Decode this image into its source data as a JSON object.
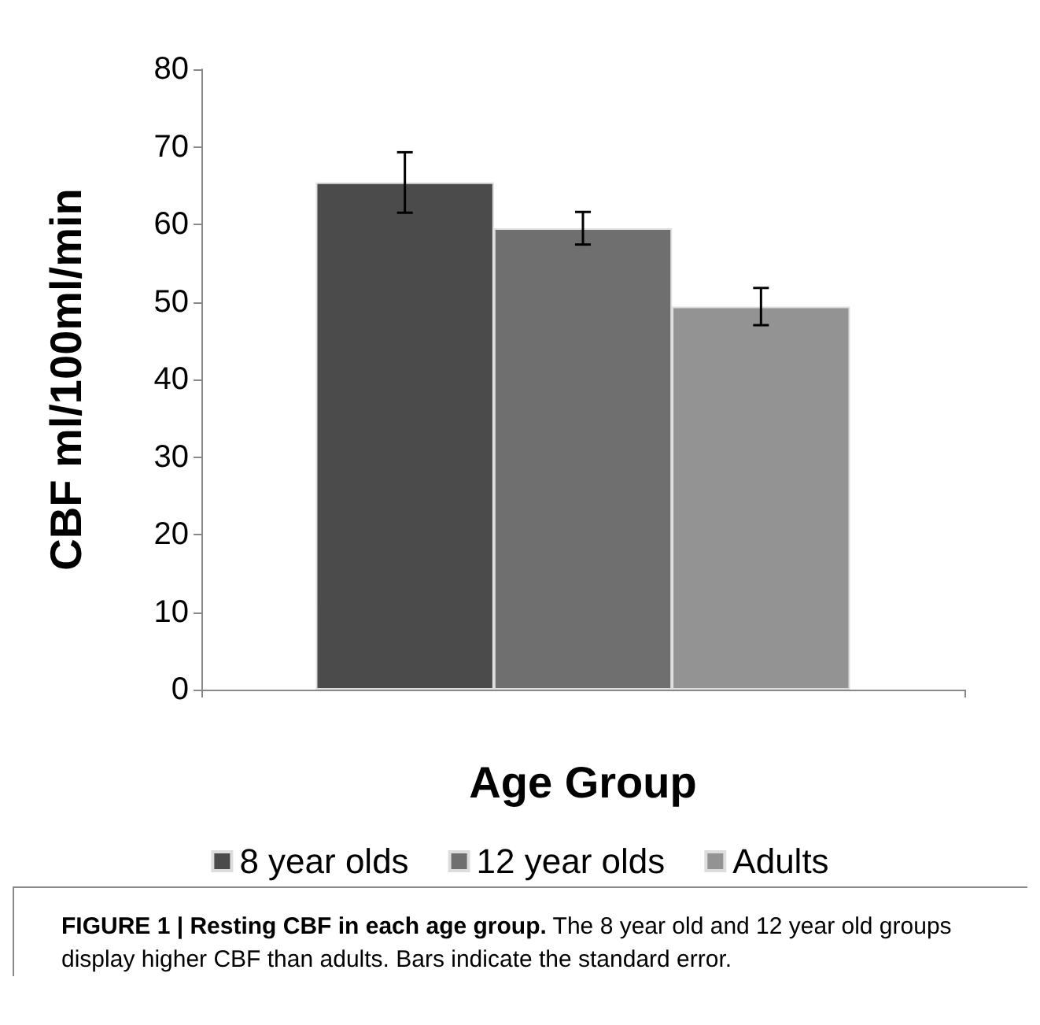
{
  "chart_data": {
    "type": "bar",
    "xlabel": "Age Group",
    "ylabel": "CBF ml/100ml/min",
    "categories": [
      null
    ],
    "series": [
      {
        "name": "8 year olds",
        "color": "#4b4b4b",
        "values": [
          65.4
        ],
        "errors": [
          3.9
        ]
      },
      {
        "name": "12 year olds",
        "color": "#6f6f6f",
        "values": [
          59.5
        ],
        "errors": [
          2.1
        ]
      },
      {
        "name": "Adults",
        "color": "#939393",
        "values": [
          49.4
        ],
        "errors": [
          2.4
        ]
      }
    ],
    "ylim": [
      0,
      80
    ],
    "yticks": [
      0,
      10,
      20,
      30,
      40,
      50,
      60,
      70,
      80
    ],
    "grid": false,
    "legend": "bottom",
    "annotations": [
      "FIGURE 1 | Resting CBF in each age group. The 8 year old and 12 year old groups display higher CBF than adults. Bars indicate the standard error."
    ]
  }
}
